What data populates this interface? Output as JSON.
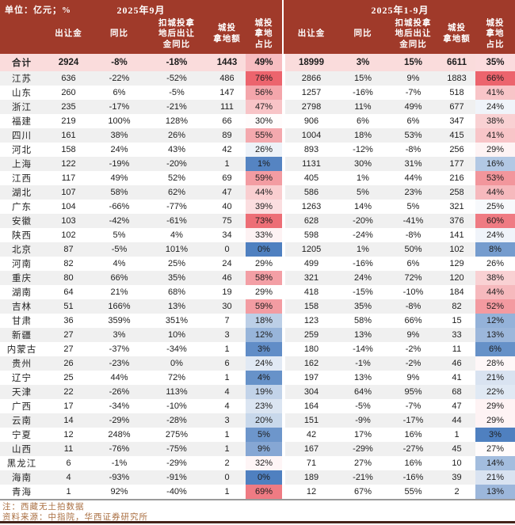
{
  "footer": {
    "note": "注：西藏无土拍数据",
    "source": "资料来源：中指院，华西证券研究所"
  },
  "colors": {
    "header_bg": "#A03A2A",
    "total_row_bg": "#FADCDC",
    "row_bg": "#FFFFFF",
    "row_alt_bg": "#F0F0F0",
    "scale_red": "#EC646D",
    "scale_blue": "#4F80C0",
    "scale_mid": "#FFFFFF",
    "note_color": "#AA6F42",
    "table_border": "#9A9A9A"
  },
  "scale": {
    "left": {
      "min": 0,
      "mid": 29,
      "max": 76
    },
    "right": {
      "min": 3,
      "mid": 26,
      "max": 66
    }
  },
  "chart_data": {
    "type": "table",
    "title_unit": "单位：亿元；%",
    "group_headers": [
      "2025年9月",
      "2025年1-9月"
    ],
    "columns": [
      "出让金",
      "同比",
      "扣城投拿地后出让金同比",
      "城投拿地额",
      "城投拿地占比"
    ],
    "columns_display": [
      "出让金",
      "同比",
      "扣城投拿\n地后出让\n金同比",
      "城投\n拿地额",
      "城投\n拿地\n占比"
    ],
    "total_row": {
      "name": "合计",
      "sep": [
        "2924",
        "-8%",
        "-18%",
        "1443",
        "49%"
      ],
      "ytd": [
        "18999",
        "3%",
        "15%",
        "6611",
        "35%"
      ]
    },
    "rows": [
      {
        "name": "江苏",
        "sep": [
          "636",
          "-22%",
          "-52%",
          "486",
          "76%"
        ],
        "ytd": [
          "2866",
          "15%",
          "9%",
          "1883",
          "66%"
        ]
      },
      {
        "name": "山东",
        "sep": [
          "260",
          "6%",
          "-5%",
          "147",
          "56%"
        ],
        "ytd": [
          "1257",
          "-16%",
          "-7%",
          "518",
          "41%"
        ]
      },
      {
        "name": "浙江",
        "sep": [
          "235",
          "-17%",
          "-21%",
          "111",
          "47%"
        ],
        "ytd": [
          "2798",
          "11%",
          "49%",
          "677",
          "24%"
        ]
      },
      {
        "name": "福建",
        "sep": [
          "219",
          "100%",
          "128%",
          "66",
          "30%"
        ],
        "ytd": [
          "906",
          "6%",
          "6%",
          "347",
          "38%"
        ]
      },
      {
        "name": "四川",
        "sep": [
          "161",
          "38%",
          "26%",
          "89",
          "55%"
        ],
        "ytd": [
          "1004",
          "18%",
          "53%",
          "415",
          "41%"
        ]
      },
      {
        "name": "河北",
        "sep": [
          "158",
          "24%",
          "43%",
          "42",
          "26%"
        ],
        "ytd": [
          "893",
          "-12%",
          "-8%",
          "256",
          "29%"
        ]
      },
      {
        "name": "上海",
        "sep": [
          "122",
          "-19%",
          "-20%",
          "1",
          "1%"
        ],
        "ytd": [
          "1131",
          "30%",
          "31%",
          "177",
          "16%"
        ]
      },
      {
        "name": "江西",
        "sep": [
          "117",
          "49%",
          "52%",
          "69",
          "59%"
        ],
        "ytd": [
          "405",
          "1%",
          "44%",
          "216",
          "53%"
        ]
      },
      {
        "name": "湖北",
        "sep": [
          "107",
          "58%",
          "62%",
          "47",
          "44%"
        ],
        "ytd": [
          "586",
          "5%",
          "23%",
          "258",
          "44%"
        ]
      },
      {
        "name": "广东",
        "sep": [
          "104",
          "-66%",
          "-77%",
          "40",
          "39%"
        ],
        "ytd": [
          "1263",
          "14%",
          "5%",
          "321",
          "25%"
        ]
      },
      {
        "name": "安徽",
        "sep": [
          "103",
          "-42%",
          "-61%",
          "75",
          "73%"
        ],
        "ytd": [
          "628",
          "-20%",
          "-41%",
          "376",
          "60%"
        ]
      },
      {
        "name": "陕西",
        "sep": [
          "102",
          "5%",
          "4%",
          "34",
          "33%"
        ],
        "ytd": [
          "598",
          "-24%",
          "-8%",
          "141",
          "24%"
        ]
      },
      {
        "name": "北京",
        "sep": [
          "87",
          "-5%",
          "101%",
          "0",
          "0%"
        ],
        "ytd": [
          "1205",
          "1%",
          "50%",
          "102",
          "8%"
        ]
      },
      {
        "name": "河南",
        "sep": [
          "82",
          "4%",
          "25%",
          "24",
          "29%"
        ],
        "ytd": [
          "499",
          "-16%",
          "6%",
          "129",
          "26%"
        ]
      },
      {
        "name": "重庆",
        "sep": [
          "80",
          "66%",
          "35%",
          "46",
          "58%"
        ],
        "ytd": [
          "321",
          "24%",
          "72%",
          "120",
          "38%"
        ]
      },
      {
        "name": "湖南",
        "sep": [
          "64",
          "21%",
          "68%",
          "19",
          "29%"
        ],
        "ytd": [
          "418",
          "-15%",
          "-10%",
          "184",
          "44%"
        ]
      },
      {
        "name": "吉林",
        "sep": [
          "51",
          "166%",
          "13%",
          "30",
          "59%"
        ],
        "ytd": [
          "158",
          "35%",
          "-8%",
          "82",
          "52%"
        ]
      },
      {
        "name": "甘肃",
        "sep": [
          "36",
          "359%",
          "351%",
          "7",
          "18%"
        ],
        "ytd": [
          "123",
          "58%",
          "66%",
          "15",
          "12%"
        ]
      },
      {
        "name": "新疆",
        "sep": [
          "27",
          "3%",
          "10%",
          "3",
          "12%"
        ],
        "ytd": [
          "259",
          "13%",
          "9%",
          "33",
          "13%"
        ]
      },
      {
        "name": "内蒙古",
        "sep": [
          "27",
          "-37%",
          "-34%",
          "1",
          "3%"
        ],
        "ytd": [
          "180",
          "-14%",
          "-2%",
          "11",
          "6%"
        ]
      },
      {
        "name": "贵州",
        "sep": [
          "26",
          "-23%",
          "0%",
          "6",
          "24%"
        ],
        "ytd": [
          "162",
          "-1%",
          "-2%",
          "46",
          "28%"
        ]
      },
      {
        "name": "辽宁",
        "sep": [
          "25",
          "44%",
          "72%",
          "1",
          "4%"
        ],
        "ytd": [
          "197",
          "13%",
          "9%",
          "41",
          "21%"
        ]
      },
      {
        "name": "天津",
        "sep": [
          "22",
          "-26%",
          "113%",
          "4",
          "19%"
        ],
        "ytd": [
          "304",
          "64%",
          "95%",
          "68",
          "22%"
        ]
      },
      {
        "name": "广西",
        "sep": [
          "17",
          "-34%",
          "-10%",
          "4",
          "23%"
        ],
        "ytd": [
          "164",
          "-5%",
          "-7%",
          "47",
          "29%"
        ]
      },
      {
        "name": "云南",
        "sep": [
          "14",
          "-29%",
          "-28%",
          "3",
          "20%"
        ],
        "ytd": [
          "151",
          "-9%",
          "-17%",
          "44",
          "29%"
        ]
      },
      {
        "name": "宁夏",
        "sep": [
          "12",
          "248%",
          "275%",
          "1",
          "5%"
        ],
        "ytd": [
          "42",
          "17%",
          "16%",
          "1",
          "3%"
        ]
      },
      {
        "name": "山西",
        "sep": [
          "11",
          "-76%",
          "-75%",
          "1",
          "9%"
        ],
        "ytd": [
          "167",
          "-29%",
          "-27%",
          "45",
          "27%"
        ]
      },
      {
        "name": "黑龙江",
        "sep": [
          "6",
          "-1%",
          "-29%",
          "2",
          "32%"
        ],
        "ytd": [
          "71",
          "27%",
          "16%",
          "10",
          "14%"
        ]
      },
      {
        "name": "海南",
        "sep": [
          "4",
          "-93%",
          "-91%",
          "0",
          "0%"
        ],
        "ytd": [
          "189",
          "-21%",
          "-16%",
          "39",
          "21%"
        ]
      },
      {
        "name": "青海",
        "sep": [
          "1",
          "92%",
          "-40%",
          "1",
          "69%"
        ],
        "ytd": [
          "12",
          "67%",
          "55%",
          "2",
          "13%"
        ]
      }
    ]
  }
}
